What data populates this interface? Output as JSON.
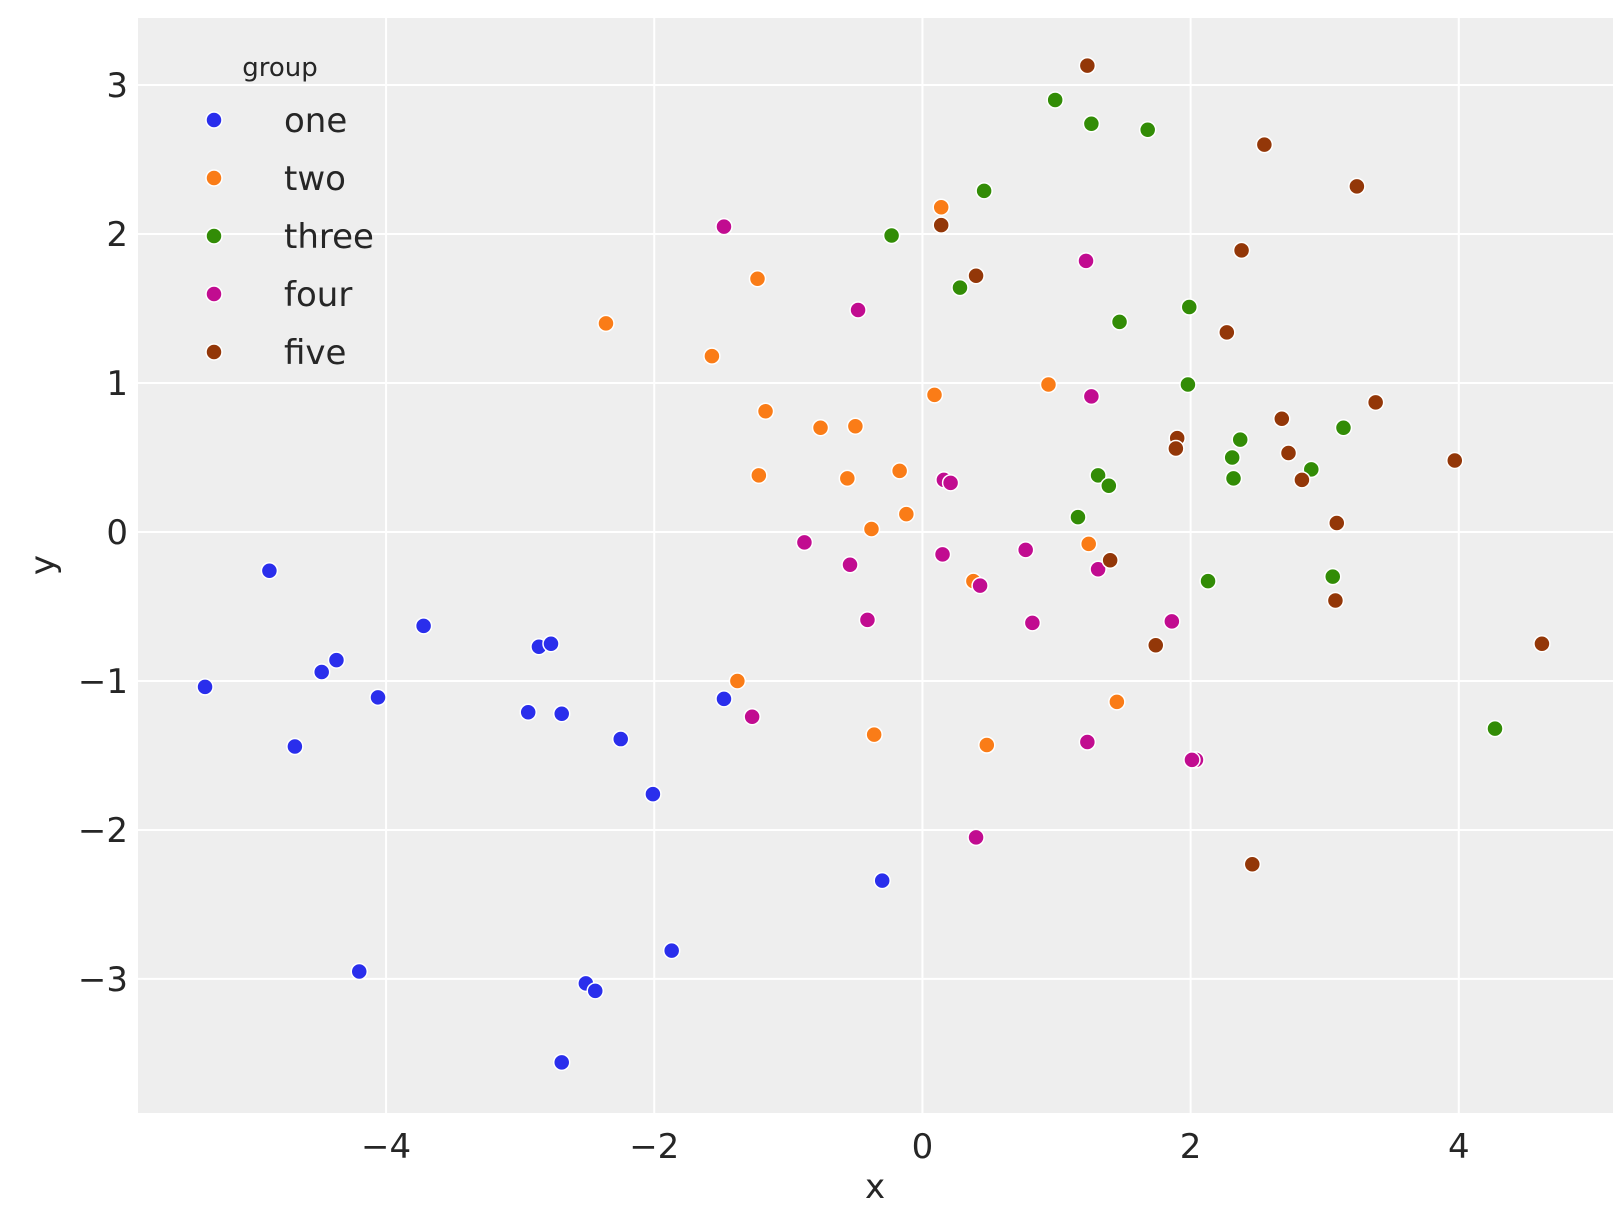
{
  "chart_data": {
    "type": "scatter",
    "title": "",
    "xlabel": "x",
    "ylabel": "y",
    "xlim": [
      -5.85,
      5.15
    ],
    "ylim": [
      -3.9,
      3.45
    ],
    "xticks": [
      -4,
      -2,
      0,
      2,
      4
    ],
    "yticks": [
      -3,
      -2,
      -1,
      0,
      1,
      2,
      3
    ],
    "xtick_labels": [
      "−4",
      "−2",
      "0",
      "2",
      "4"
    ],
    "ytick_labels": [
      "−3",
      "−2",
      "−1",
      "0",
      "1",
      "2",
      "3"
    ],
    "grid": true,
    "legend": {
      "title": "group",
      "placement": "top-left"
    },
    "series": [
      {
        "name": "one",
        "color": "#2a2eec",
        "points": [
          [
            -5.35,
            -1.04
          ],
          [
            -4.87,
            -0.26
          ],
          [
            -4.68,
            -1.44
          ],
          [
            -4.48,
            -0.94
          ],
          [
            -4.37,
            -0.86
          ],
          [
            -4.2,
            -2.95
          ],
          [
            -4.06,
            -1.11
          ],
          [
            -3.72,
            -0.63
          ],
          [
            -2.94,
            -1.21
          ],
          [
            -2.86,
            -0.77
          ],
          [
            -2.77,
            -0.75
          ],
          [
            -2.69,
            -1.22
          ],
          [
            -2.25,
            -1.39
          ],
          [
            -2.01,
            -1.76
          ],
          [
            -1.87,
            -2.81
          ],
          [
            -2.51,
            -3.03
          ],
          [
            -2.44,
            -3.08
          ],
          [
            -2.69,
            -3.56
          ],
          [
            -1.48,
            -1.12
          ],
          [
            -0.3,
            -2.34
          ]
        ]
      },
      {
        "name": "two",
        "color": "#fa7c17",
        "points": [
          [
            -2.36,
            1.4
          ],
          [
            -1.57,
            1.18
          ],
          [
            -1.23,
            1.7
          ],
          [
            -1.17,
            0.81
          ],
          [
            -1.22,
            0.38
          ],
          [
            -0.76,
            0.7
          ],
          [
            -0.5,
            0.71
          ],
          [
            -0.56,
            0.36
          ],
          [
            -0.17,
            0.41
          ],
          [
            -0.12,
            0.12
          ],
          [
            -0.38,
            0.02
          ],
          [
            0.14,
            2.18
          ],
          [
            0.09,
            0.92
          ],
          [
            0.94,
            0.99
          ],
          [
            0.38,
            -0.33
          ],
          [
            1.24,
            -0.08
          ],
          [
            -1.38,
            -1.0
          ],
          [
            -0.36,
            -1.36
          ],
          [
            0.48,
            -1.43
          ],
          [
            1.45,
            -1.14
          ]
        ]
      },
      {
        "name": "three",
        "color": "#328c06",
        "points": [
          [
            0.99,
            2.9
          ],
          [
            1.26,
            2.74
          ],
          [
            1.68,
            2.7
          ],
          [
            0.46,
            2.29
          ],
          [
            -0.23,
            1.99
          ],
          [
            0.28,
            1.64
          ],
          [
            1.47,
            1.41
          ],
          [
            1.99,
            1.51
          ],
          [
            1.98,
            0.99
          ],
          [
            2.37,
            0.62
          ],
          [
            2.31,
            0.5
          ],
          [
            2.32,
            0.36
          ],
          [
            1.31,
            0.38
          ],
          [
            1.39,
            0.31
          ],
          [
            1.16,
            0.1
          ],
          [
            3.14,
            0.7
          ],
          [
            2.9,
            0.42
          ],
          [
            2.13,
            -0.33
          ],
          [
            3.06,
            -0.3
          ],
          [
            4.27,
            -1.32
          ]
        ]
      },
      {
        "name": "four",
        "color": "#c10c90",
        "points": [
          [
            -1.48,
            2.05
          ],
          [
            -0.48,
            1.49
          ],
          [
            1.22,
            1.82
          ],
          [
            1.26,
            0.91
          ],
          [
            0.16,
            0.35
          ],
          [
            0.21,
            0.33
          ],
          [
            -0.88,
            -0.07
          ],
          [
            -0.54,
            -0.22
          ],
          [
            0.15,
            -0.15
          ],
          [
            0.43,
            -0.36
          ],
          [
            0.77,
            -0.12
          ],
          [
            1.31,
            -0.25
          ],
          [
            -0.41,
            -0.59
          ],
          [
            0.82,
            -0.61
          ],
          [
            1.86,
            -0.6
          ],
          [
            -1.27,
            -1.24
          ],
          [
            1.23,
            -1.41
          ],
          [
            2.04,
            -1.53
          ],
          [
            2.01,
            -1.53
          ],
          [
            0.4,
            -2.05
          ]
        ]
      },
      {
        "name": "five",
        "color": "#933708",
        "points": [
          [
            1.23,
            3.13
          ],
          [
            2.55,
            2.6
          ],
          [
            3.24,
            2.32
          ],
          [
            0.14,
            2.06
          ],
          [
            2.38,
            1.89
          ],
          [
            0.4,
            1.72
          ],
          [
            2.27,
            1.34
          ],
          [
            3.38,
            0.87
          ],
          [
            2.68,
            0.76
          ],
          [
            1.9,
            0.63
          ],
          [
            1.89,
            0.56
          ],
          [
            2.73,
            0.53
          ],
          [
            2.83,
            0.35
          ],
          [
            3.97,
            0.48
          ],
          [
            3.09,
            0.06
          ],
          [
            1.4,
            -0.19
          ],
          [
            3.08,
            -0.46
          ],
          [
            1.74,
            -0.76
          ],
          [
            4.62,
            -0.75
          ],
          [
            2.46,
            -2.23
          ]
        ]
      }
    ]
  }
}
